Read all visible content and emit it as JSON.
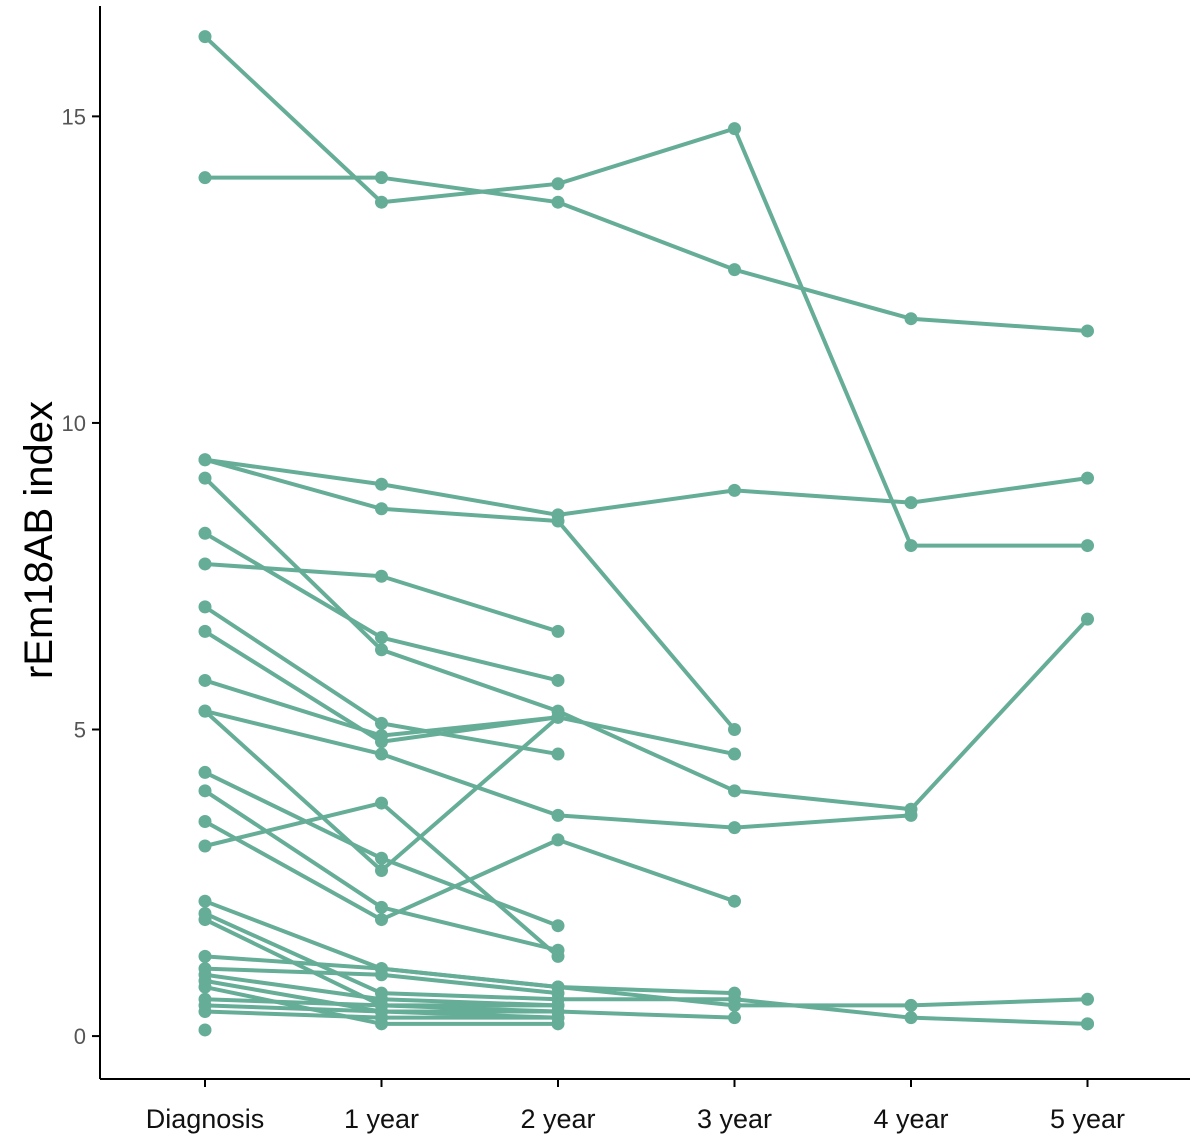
{
  "chart_data": {
    "type": "line",
    "title": "",
    "xlabel": "",
    "ylabel": "rEm18AB index",
    "categories": [
      "Diagnosis",
      "1 year",
      "2 year",
      "3 year",
      "4 year",
      "5 year"
    ],
    "yticks": [
      "0",
      "5",
      "10",
      "15"
    ],
    "ylim": [
      -0.7,
      16.8
    ],
    "grid": false,
    "legend": "none",
    "color": "#66ad98",
    "series": [
      {
        "values": [
          16.3,
          13.6,
          13.9,
          14.8,
          8.0,
          8.0
        ]
      },
      {
        "values": [
          14.0,
          14.0,
          13.6,
          12.5,
          11.7,
          11.5
        ]
      },
      {
        "values": [
          9.4,
          9.0,
          8.5,
          8.9,
          8.7,
          9.1
        ]
      },
      {
        "values": [
          9.4,
          8.6,
          8.4,
          5.0,
          null,
          null
        ]
      },
      {
        "values": [
          9.1,
          6.3,
          5.3,
          4.0,
          3.7,
          6.8
        ]
      },
      {
        "values": [
          8.2,
          6.5,
          5.8,
          null,
          null,
          null
        ]
      },
      {
        "values": [
          7.7,
          7.5,
          6.6,
          null,
          null,
          null
        ]
      },
      {
        "values": [
          7.0,
          5.1,
          4.6,
          null,
          null,
          null
        ]
      },
      {
        "values": [
          6.6,
          4.8,
          5.2,
          4.6,
          null,
          null
        ]
      },
      {
        "values": [
          5.8,
          4.9,
          5.2,
          null,
          null,
          null
        ]
      },
      {
        "values": [
          5.3,
          4.6,
          3.6,
          3.4,
          3.6,
          null
        ]
      },
      {
        "values": [
          5.3,
          2.7,
          5.2,
          null,
          null,
          null
        ]
      },
      {
        "values": [
          4.3,
          2.9,
          1.8,
          null,
          null,
          null
        ]
      },
      {
        "values": [
          4.0,
          2.1,
          1.4,
          null,
          null,
          null
        ]
      },
      {
        "values": [
          3.5,
          1.9,
          3.2,
          2.2,
          null,
          null
        ]
      },
      {
        "values": [
          3.1,
          3.8,
          1.3,
          null,
          null,
          null
        ]
      },
      {
        "values": [
          2.2,
          1.1,
          0.8,
          0.5,
          0.5,
          0.6
        ]
      },
      {
        "values": [
          2.0,
          0.7,
          0.6,
          0.6,
          0.3,
          0.2
        ]
      },
      {
        "values": [
          1.9,
          0.5,
          0.4,
          0.3,
          null,
          null
        ]
      },
      {
        "values": [
          1.3,
          1.1,
          0.8,
          0.7,
          null,
          null
        ]
      },
      {
        "values": [
          1.1,
          1.0,
          0.7,
          null,
          null,
          null
        ]
      },
      {
        "values": [
          1.0,
          0.6,
          0.5,
          null,
          null,
          null
        ]
      },
      {
        "values": [
          0.9,
          0.4,
          0.3,
          null,
          null,
          null
        ]
      },
      {
        "values": [
          0.8,
          0.2,
          0.2,
          null,
          null,
          null
        ]
      },
      {
        "values": [
          0.6,
          0.5,
          0.5,
          null,
          null,
          null
        ]
      },
      {
        "values": [
          0.5,
          0.4,
          0.4,
          null,
          null,
          null
        ]
      },
      {
        "values": [
          0.4,
          0.3,
          0.3,
          null,
          null,
          null
        ]
      },
      {
        "values": [
          0.1,
          null,
          null,
          null,
          null,
          0.2
        ]
      }
    ]
  }
}
